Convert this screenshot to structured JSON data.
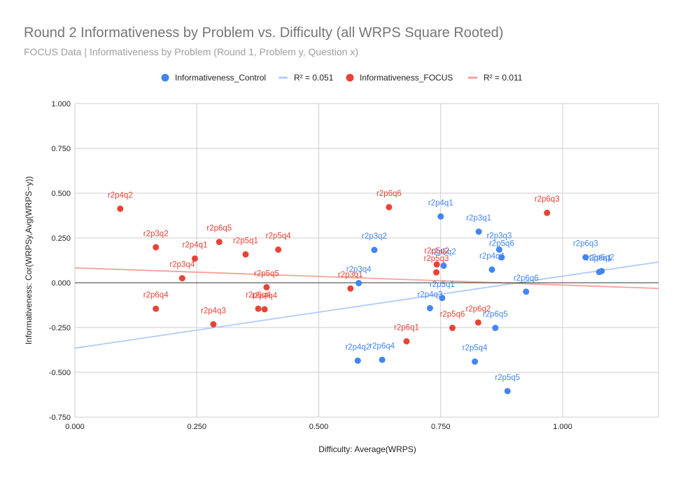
{
  "chart_data": {
    "type": "scatter",
    "title": "Round 2 Informativeness by Problem vs. Difficulty  (all WRPS Square Rooted)",
    "subtitle": "FOCUS Data | Informativeness by Problem (Round 1, Problem y, Question x)",
    "xlabel": "Difficulty: Average(WRPS)",
    "ylabel": "Informativeness: Cor(WRPSy,Avg(WRPS~y))",
    "xlim": [
      0,
      1.2
    ],
    "ylim": [
      -0.75,
      1.0
    ],
    "x_ticks": [
      "0.000",
      "0.250",
      "0.500",
      "0.750",
      "1.000"
    ],
    "y_ticks": [
      "1.000",
      "0.750",
      "0.500",
      "0.250",
      "0.000",
      "-0.250",
      "-0.500",
      "-0.750"
    ],
    "grid": true,
    "legend_position": "top",
    "legend": [
      {
        "label": "Informativeness_Control",
        "kind": "marker",
        "color": "#4285f4"
      },
      {
        "label": "R² = 0.051",
        "kind": "line",
        "color": "#aecbfa"
      },
      {
        "label": "Informativeness_FOCUS",
        "kind": "marker",
        "color": "#ea4335"
      },
      {
        "label": "R² = 0.011",
        "kind": "line",
        "color": "#f4a29a"
      }
    ],
    "series": [
      {
        "name": "Informativeness_Control",
        "color": "#4285f4",
        "trend": {
          "x": [
            0,
            1.2
          ],
          "y": [
            -0.365,
            0.117
          ],
          "color": "#aecbfa"
        },
        "points": [
          {
            "x": 0.75,
            "y": 0.37,
            "label": "r2p4q1"
          },
          {
            "x": 0.828,
            "y": 0.285,
            "label": "r2p3q1"
          },
          {
            "x": 0.614,
            "y": 0.183,
            "label": "r2p3q2"
          },
          {
            "x": 0.87,
            "y": 0.185,
            "label": "r2p3q3"
          },
          {
            "x": 0.875,
            "y": 0.142,
            "label": "r2p5q6"
          },
          {
            "x": 0.756,
            "y": 0.095,
            "label": "r2p5q2"
          },
          {
            "x": 0.855,
            "y": 0.073,
            "label": "r2p4q4"
          },
          {
            "x": 0.582,
            "y": -0.002,
            "label": "r2p3q4"
          },
          {
            "x": 0.753,
            "y": -0.085,
            "label": "r2p5q1"
          },
          {
            "x": 0.728,
            "y": -0.142,
            "label": "r2p4q3"
          },
          {
            "x": 0.925,
            "y": -0.05,
            "label": "r2p6q6"
          },
          {
            "x": 1.047,
            "y": 0.142,
            "label": "r2p6q3"
          },
          {
            "x": 1.075,
            "y": 0.06,
            "label": "r2p6q1"
          },
          {
            "x": 1.08,
            "y": 0.065,
            "label": "r2p6q2"
          },
          {
            "x": 0.862,
            "y": -0.252,
            "label": "r2p6q5"
          },
          {
            "x": 0.58,
            "y": -0.435,
            "label": "r2p4q2"
          },
          {
            "x": 0.63,
            "y": -0.43,
            "label": "r2p6q4"
          },
          {
            "x": 0.82,
            "y": -0.44,
            "label": "r2p5q4"
          },
          {
            "x": 0.887,
            "y": -0.605,
            "label": "r2p5q5"
          }
        ]
      },
      {
        "name": "Informativeness_FOCUS",
        "color": "#ea4335",
        "trend": {
          "x": [
            0,
            1.2
          ],
          "y": [
            0.083,
            -0.032
          ],
          "color": "#f4a29a"
        },
        "points": [
          {
            "x": 0.093,
            "y": 0.413,
            "label": "r2p4q2"
          },
          {
            "x": 0.166,
            "y": 0.198,
            "label": "r2p3q2"
          },
          {
            "x": 0.246,
            "y": 0.135,
            "label": "r2p4q1"
          },
          {
            "x": 0.22,
            "y": 0.025,
            "label": "r2p3q4"
          },
          {
            "x": 0.296,
            "y": 0.228,
            "label": "r2p6q5"
          },
          {
            "x": 0.35,
            "y": 0.158,
            "label": "r2p5q1"
          },
          {
            "x": 0.417,
            "y": 0.185,
            "label": "r2p5q4"
          },
          {
            "x": 0.166,
            "y": -0.145,
            "label": "r2p6q4"
          },
          {
            "x": 0.284,
            "y": -0.232,
            "label": "r2p4q3"
          },
          {
            "x": 0.393,
            "y": -0.025,
            "label": "r2p5q5"
          },
          {
            "x": 0.376,
            "y": -0.145,
            "label": "r2p6q4"
          },
          {
            "x": 0.389,
            "y": -0.148,
            "label": "r2p4q4"
          },
          {
            "x": 0.565,
            "y": -0.032,
            "label": "r2p3q1"
          },
          {
            "x": 0.644,
            "y": 0.422,
            "label": "r2p6q6"
          },
          {
            "x": 0.742,
            "y": 0.102,
            "label": "r2p5q2"
          },
          {
            "x": 0.741,
            "y": 0.058,
            "label": "r2p5q3"
          },
          {
            "x": 0.68,
            "y": -0.327,
            "label": "r2p6q1"
          },
          {
            "x": 0.774,
            "y": -0.252,
            "label": "r2p5q6"
          },
          {
            "x": 0.827,
            "y": -0.222,
            "label": "r2p6q2"
          },
          {
            "x": 0.968,
            "y": 0.39,
            "label": "r2p6q3"
          }
        ]
      }
    ]
  }
}
